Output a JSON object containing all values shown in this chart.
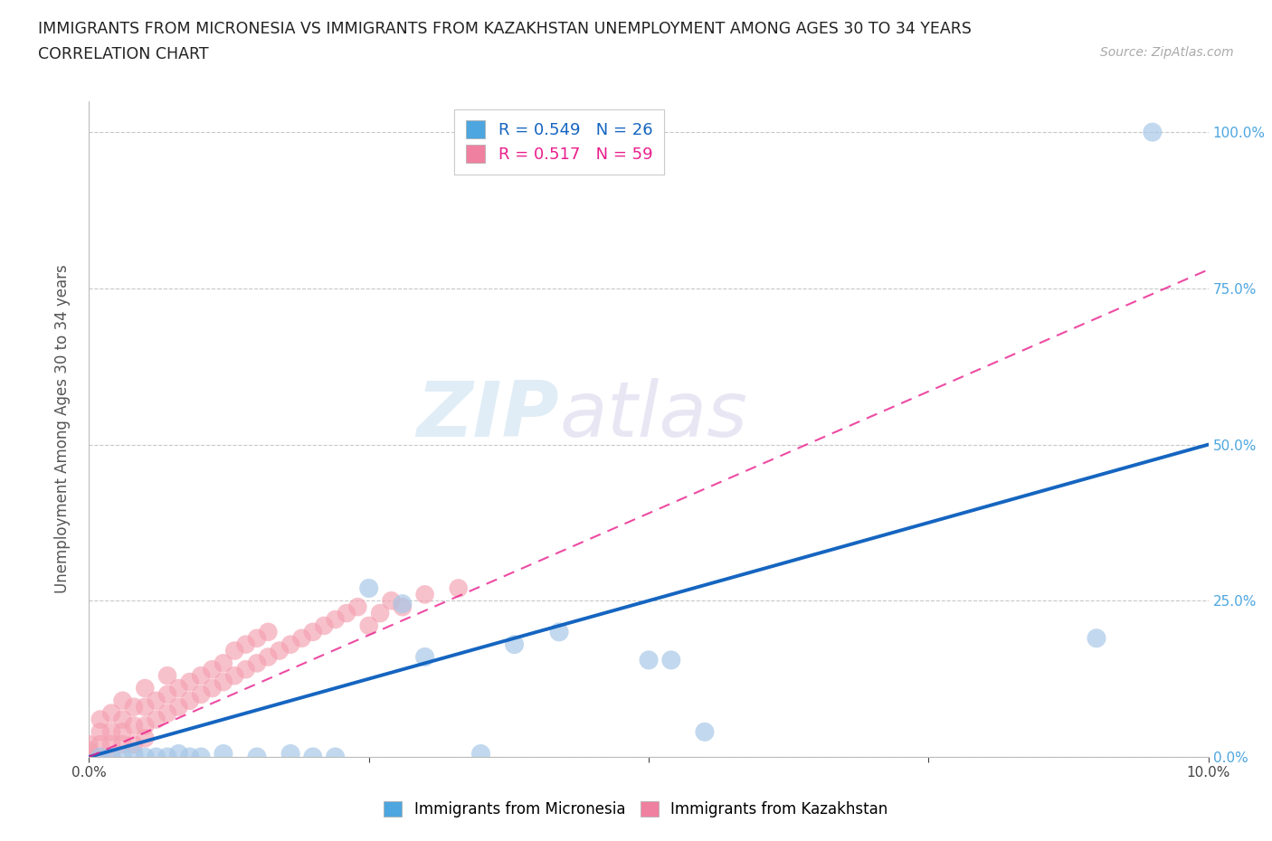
{
  "title_line1": "IMMIGRANTS FROM MICRONESIA VS IMMIGRANTS FROM KAZAKHSTAN UNEMPLOYMENT AMONG AGES 30 TO 34 YEARS",
  "title_line2": "CORRELATION CHART",
  "source_text": "Source: ZipAtlas.com",
  "ylabel": "Unemployment Among Ages 30 to 34 years",
  "xlim": [
    0.0,
    0.1
  ],
  "ylim": [
    0.0,
    1.05
  ],
  "xtick_vals": [
    0.0,
    0.025,
    0.05,
    0.075,
    0.1
  ],
  "xtick_labels_sparse": [
    "0.0%",
    "",
    "",
    "",
    "10.0%"
  ],
  "ytick_vals": [
    0.0,
    0.25,
    0.5,
    0.75,
    1.0
  ],
  "ytick_labels": [
    "0.0%",
    "25.0%",
    "50.0%",
    "75.0%",
    "100.0%"
  ],
  "micronesia_color": "#a8c8e8",
  "kazakhstan_color": "#f4a0b0",
  "micronesia_R": 0.549,
  "micronesia_N": 26,
  "kazakhstan_R": 0.517,
  "kazakhstan_N": 59,
  "micronesia_trend_color": "#1565C0",
  "kazakhstan_trend_color": "#E91E8C",
  "watermark_zip": "ZIP",
  "watermark_atlas": "atlas",
  "micronesia_x": [
    0.001,
    0.002,
    0.003,
    0.004,
    0.005,
    0.006,
    0.007,
    0.008,
    0.009,
    0.01,
    0.012,
    0.015,
    0.018,
    0.02,
    0.022,
    0.025,
    0.028,
    0.03,
    0.035,
    0.038,
    0.042,
    0.05,
    0.052,
    0.055,
    0.09,
    0.095
  ],
  "micronesia_y": [
    0.0,
    0.0,
    0.0,
    0.005,
    0.0,
    0.0,
    0.0,
    0.005,
    0.0,
    0.0,
    0.005,
    0.0,
    0.005,
    0.0,
    0.0,
    0.27,
    0.245,
    0.16,
    0.005,
    0.18,
    0.2,
    0.155,
    0.155,
    0.04,
    0.19,
    1.0
  ],
  "kazakhstan_x": [
    0.0,
    0.0,
    0.0,
    0.001,
    0.001,
    0.001,
    0.001,
    0.002,
    0.002,
    0.002,
    0.002,
    0.003,
    0.003,
    0.003,
    0.003,
    0.004,
    0.004,
    0.004,
    0.005,
    0.005,
    0.005,
    0.005,
    0.006,
    0.006,
    0.007,
    0.007,
    0.007,
    0.008,
    0.008,
    0.009,
    0.009,
    0.01,
    0.01,
    0.011,
    0.011,
    0.012,
    0.012,
    0.013,
    0.013,
    0.014,
    0.014,
    0.015,
    0.015,
    0.016,
    0.016,
    0.017,
    0.018,
    0.019,
    0.02,
    0.021,
    0.022,
    0.023,
    0.024,
    0.025,
    0.026,
    0.027,
    0.028,
    0.03,
    0.033
  ],
  "kazakhstan_y": [
    0.0,
    0.01,
    0.02,
    0.0,
    0.02,
    0.04,
    0.06,
    0.0,
    0.02,
    0.04,
    0.07,
    0.02,
    0.04,
    0.06,
    0.09,
    0.02,
    0.05,
    0.08,
    0.03,
    0.05,
    0.08,
    0.11,
    0.06,
    0.09,
    0.07,
    0.1,
    0.13,
    0.08,
    0.11,
    0.09,
    0.12,
    0.1,
    0.13,
    0.11,
    0.14,
    0.12,
    0.15,
    0.13,
    0.17,
    0.14,
    0.18,
    0.15,
    0.19,
    0.16,
    0.2,
    0.17,
    0.18,
    0.19,
    0.2,
    0.21,
    0.22,
    0.23,
    0.24,
    0.21,
    0.23,
    0.25,
    0.24,
    0.26,
    0.27
  ],
  "background_color": "#ffffff",
  "grid_color": "#c8c8c8",
  "legend_color_mic": "#4da6e0",
  "legend_color_kaz": "#f080a0"
}
